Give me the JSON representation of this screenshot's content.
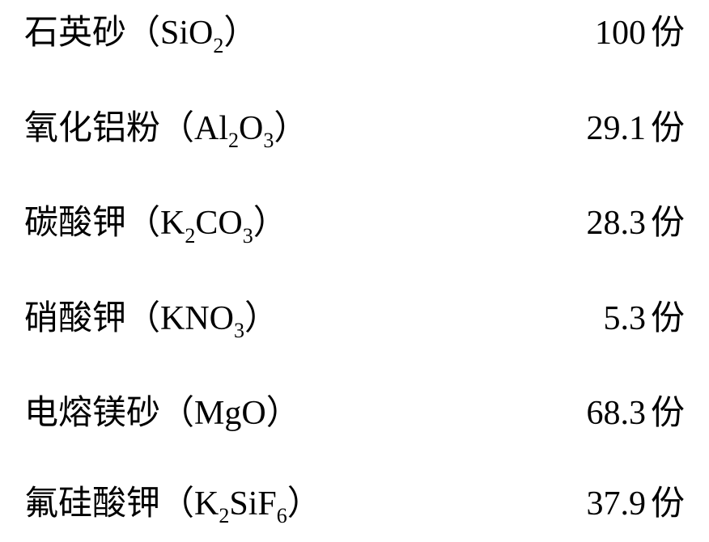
{
  "document": {
    "background_color": "#ffffff",
    "text_color": "#000000",
    "font_family": "SimSun",
    "font_size_pt": 32,
    "rows": [
      {
        "name": "石英砂",
        "formula": "（SiO<sub>2</sub>）",
        "value": "100",
        "unit": "份",
        "value_width": 290
      },
      {
        "name": "氧化铝粉",
        "formula": "（Al<sub>2</sub>O<sub>3</sub>）",
        "value": "29.1",
        "unit": "份",
        "value_width": 228
      },
      {
        "name": "碳酸钾",
        "formula": "（K<sub>2</sub>CO<sub>3</sub>）",
        "value": "28.3",
        "unit": "份",
        "value_width": 258
      },
      {
        "name": "硝酸钾",
        "formula": "（KNO<sub>3</sub>）",
        "value": "5.3",
        "unit": "份",
        "value_width": 262
      },
      {
        "name": "电熔镁砂",
        "formula": "（MgO）",
        "value": "68.3",
        "unit": "份",
        "value_width": 246
      },
      {
        "name": "氟硅酸钾",
        "formula": "（K<sub>2</sub>SiF<sub>6</sub>）",
        "value": "37.9",
        "unit": "份",
        "value_width": 212
      }
    ]
  }
}
